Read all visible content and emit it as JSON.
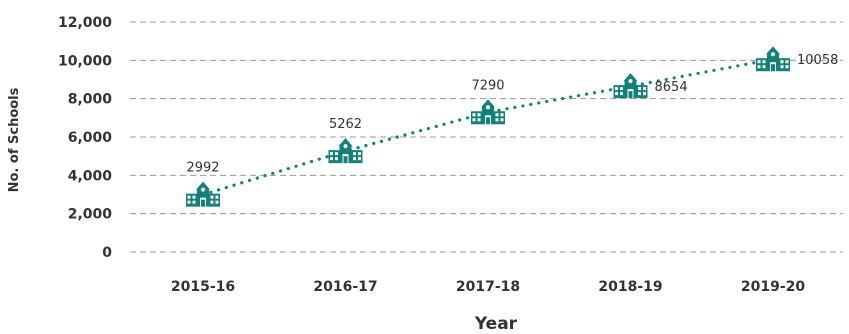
{
  "chart_data": {
    "type": "line",
    "xlabel": "Year",
    "ylabel": "No. of Schools",
    "ylim": [
      0,
      12000
    ],
    "yticks": [
      0,
      2000,
      4000,
      6000,
      8000,
      10000,
      12000
    ],
    "ytick_labels": [
      "0",
      "2,000",
      "4,000",
      "6,000",
      "8,000",
      "10,000",
      "12,000"
    ],
    "categories": [
      "2015-16",
      "2016-17",
      "2017-18",
      "2018-19",
      "2019-20"
    ],
    "series": [
      {
        "values": [
          2992,
          5262,
          7290,
          8654,
          10058
        ],
        "data_labels": [
          "2992",
          "5262",
          "7290",
          "8654",
          "10058"
        ]
      }
    ],
    "marker": "school-icon",
    "grid": "horizontal dashed",
    "colors": {
      "accent": "#138079",
      "grid": "#9a9a9a",
      "text": "#333333"
    }
  }
}
